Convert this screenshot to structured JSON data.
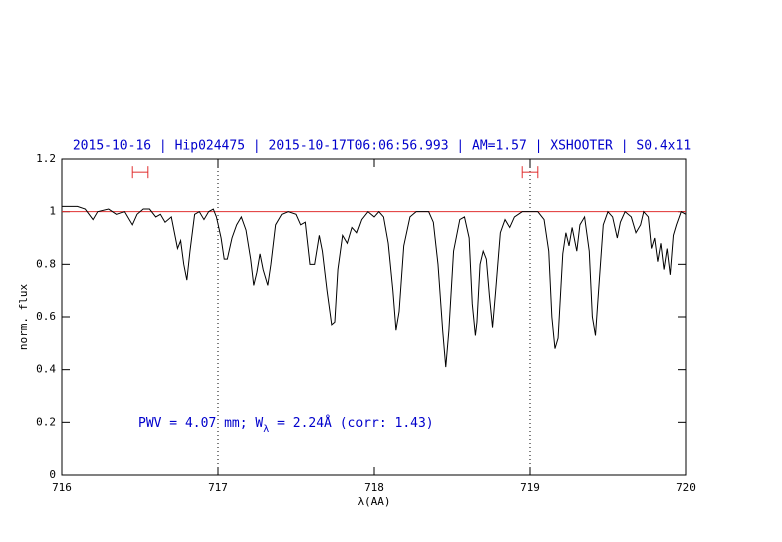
{
  "chart_data": {
    "type": "line",
    "title": "2015-10-16 | Hip024475 | 2015-10-17T06:06:56.993 | AM=1.57 | XSHOOTER | S0.4x11",
    "xlabel": "λ(AA)",
    "ylabel": "norm. flux",
    "annotation": [
      "PWV = 4.07 mm; W",
      "λ",
      " = 2.24Å (corr: 1.43)"
    ],
    "xlim": [
      716,
      720
    ],
    "ylim": [
      0,
      1.2
    ],
    "xticks": [
      716,
      717,
      718,
      719,
      720
    ],
    "yticks": [
      0,
      0.2,
      0.4,
      0.6,
      0.8,
      1,
      1.2
    ],
    "hline": {
      "value": 1,
      "color": "#e03030"
    },
    "vlines": [
      717,
      719
    ],
    "range_markers": {
      "y": 1.15,
      "color": "#e03030",
      "ranges": [
        [
          716.45,
          716.55
        ],
        [
          718.95,
          719.05
        ]
      ]
    },
    "x": [
      716.0,
      716.1,
      716.15,
      716.2,
      716.23,
      716.3,
      716.35,
      716.4,
      716.43,
      716.45,
      716.48,
      716.52,
      716.56,
      716.6,
      716.63,
      716.66,
      716.7,
      716.72,
      716.74,
      716.76,
      716.78,
      716.8,
      716.82,
      716.85,
      716.88,
      716.91,
      716.94,
      716.97,
      716.99,
      717.02,
      717.04,
      717.06,
      717.09,
      717.12,
      717.15,
      717.18,
      717.21,
      717.23,
      717.25,
      717.27,
      717.29,
      717.32,
      717.34,
      717.37,
      717.41,
      717.45,
      717.5,
      717.53,
      717.56,
      717.59,
      717.62,
      717.65,
      717.67,
      717.7,
      717.73,
      717.75,
      717.77,
      717.8,
      717.83,
      717.86,
      717.89,
      717.92,
      717.96,
      718.0,
      718.03,
      718.06,
      718.09,
      718.12,
      718.14,
      718.16,
      718.19,
      718.23,
      718.27,
      718.32,
      718.35,
      718.38,
      718.41,
      718.44,
      718.46,
      718.48,
      718.51,
      718.55,
      718.58,
      718.61,
      718.63,
      718.65,
      718.66,
      718.68,
      718.7,
      718.72,
      718.74,
      718.76,
      718.78,
      718.81,
      718.84,
      718.87,
      718.9,
      718.95,
      719.0,
      719.05,
      719.09,
      719.12,
      719.14,
      719.16,
      719.18,
      719.21,
      719.23,
      719.25,
      719.27,
      719.3,
      719.32,
      719.35,
      719.38,
      719.4,
      719.42,
      719.44,
      719.47,
      719.5,
      719.53,
      719.56,
      719.58,
      719.61,
      719.65,
      719.68,
      719.71,
      719.73,
      719.76,
      719.78,
      719.8,
      719.82,
      719.84,
      719.86,
      719.88,
      719.9,
      719.92,
      719.94,
      719.97,
      720.0
    ],
    "series": [
      {
        "color": "#000000",
        "values": [
          1.02,
          1.02,
          1.01,
          0.97,
          1.0,
          1.01,
          0.99,
          1.0,
          0.97,
          0.95,
          0.99,
          1.01,
          1.01,
          0.98,
          0.99,
          0.96,
          0.98,
          0.92,
          0.86,
          0.89,
          0.8,
          0.74,
          0.85,
          0.99,
          1.0,
          0.97,
          1.0,
          1.01,
          0.98,
          0.9,
          0.82,
          0.82,
          0.9,
          0.95,
          0.98,
          0.93,
          0.82,
          0.72,
          0.77,
          0.84,
          0.78,
          0.72,
          0.8,
          0.95,
          0.99,
          1.0,
          0.99,
          0.95,
          0.96,
          0.8,
          0.8,
          0.91,
          0.85,
          0.7,
          0.57,
          0.58,
          0.78,
          0.91,
          0.88,
          0.94,
          0.92,
          0.97,
          1.0,
          0.98,
          1.0,
          0.98,
          0.88,
          0.7,
          0.55,
          0.62,
          0.87,
          0.98,
          1.0,
          1.0,
          1.0,
          0.96,
          0.8,
          0.55,
          0.41,
          0.55,
          0.85,
          0.97,
          0.98,
          0.9,
          0.65,
          0.53,
          0.58,
          0.8,
          0.85,
          0.82,
          0.68,
          0.56,
          0.7,
          0.92,
          0.97,
          0.94,
          0.98,
          1.0,
          1.0,
          1.0,
          0.97,
          0.85,
          0.6,
          0.48,
          0.52,
          0.84,
          0.92,
          0.87,
          0.94,
          0.85,
          0.95,
          0.98,
          0.85,
          0.6,
          0.53,
          0.7,
          0.95,
          1.0,
          0.98,
          0.9,
          0.96,
          1.0,
          0.98,
          0.92,
          0.95,
          1.0,
          0.98,
          0.86,
          0.9,
          0.81,
          0.88,
          0.78,
          0.86,
          0.76,
          0.91,
          0.95,
          1.0,
          0.99
        ]
      }
    ],
    "title_color": "#0000cc"
  }
}
